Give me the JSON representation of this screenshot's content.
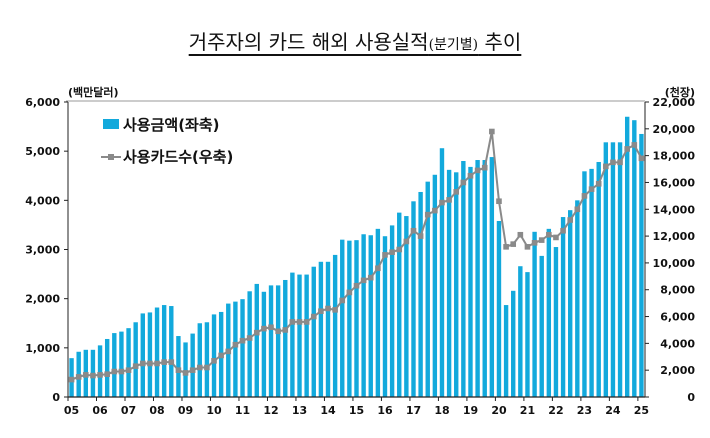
{
  "chart_data": {
    "type": "bar+line",
    "title": "거주자의 카드 해외 사용실적",
    "title_suffix": "(분기별)",
    "title_end": "추이",
    "left_unit": "(백만달러)",
    "right_unit": "(천장)",
    "ylim_left": [
      0,
      6000
    ],
    "ylim_right": [
      0,
      22000
    ],
    "left_ticks": [
      "0",
      "1,000",
      "2,000",
      "3,000",
      "4,000",
      "5,000",
      "6,000"
    ],
    "right_ticks": [
      "0",
      "2,000",
      "4,000",
      "6,000",
      "8,000",
      "10,000",
      "12,000",
      "14,000",
      "16,000",
      "18,000",
      "20,000",
      "22,000"
    ],
    "x_tick_labels": [
      "05",
      "06",
      "07",
      "08",
      "09",
      "10",
      "11",
      "12",
      "13",
      "14",
      "15",
      "16",
      "17",
      "18",
      "19",
      "20",
      "21",
      "22",
      "23",
      "24",
      "25"
    ],
    "legend_position": "top-left",
    "grid": false,
    "colors": {
      "bars": "#12a9dc",
      "line": "#8a8a8a"
    },
    "series": [
      {
        "name": "사용금액(좌축)",
        "type": "bar",
        "axis": "left",
        "values": [
          790,
          920,
          960,
          960,
          1050,
          1180,
          1300,
          1330,
          1400,
          1520,
          1700,
          1720,
          1820,
          1870,
          1850,
          1240,
          1110,
          1290,
          1500,
          1520,
          1680,
          1730,
          1900,
          1940,
          1990,
          2150,
          2300,
          2140,
          2270,
          2270,
          2380,
          2530,
          2490,
          2490,
          2650,
          2750,
          2750,
          2890,
          3200,
          3180,
          3190,
          3310,
          3290,
          3420,
          3270,
          3490,
          3750,
          3680,
          3980,
          4170,
          4380,
          4520,
          5060,
          4620,
          4570,
          4800,
          4680,
          4820,
          4820,
          4880,
          3580,
          1870,
          2160,
          2660,
          2540,
          3360,
          2870,
          3420,
          3050,
          3660,
          3800,
          4000,
          4590,
          4640,
          4780,
          5180,
          5180,
          5180,
          5700,
          5630,
          5350
        ]
      },
      {
        "name": "사용카드수(우축)",
        "type": "line",
        "axis": "right",
        "values": [
          1300,
          1500,
          1650,
          1600,
          1650,
          1700,
          1900,
          1900,
          2000,
          2300,
          2500,
          2500,
          2500,
          2600,
          2600,
          2000,
          1800,
          2000,
          2200,
          2200,
          2700,
          3100,
          3400,
          3900,
          4200,
          4400,
          4800,
          5100,
          5200,
          4900,
          5000,
          5600,
          5600,
          5600,
          6000,
          6400,
          6600,
          6500,
          7200,
          7800,
          8300,
          8700,
          8900,
          9600,
          10600,
          10800,
          11000,
          11600,
          12400,
          12000,
          13600,
          13900,
          14500,
          14700,
          15300,
          16000,
          16500,
          16900,
          17100,
          19800,
          14600,
          11200,
          11400,
          12100,
          11200,
          11500,
          11700,
          12100,
          11900,
          12400,
          13200,
          14000,
          15000,
          15500,
          15900,
          17200,
          17500,
          17500,
          18500,
          18800,
          17800
        ]
      }
    ]
  }
}
